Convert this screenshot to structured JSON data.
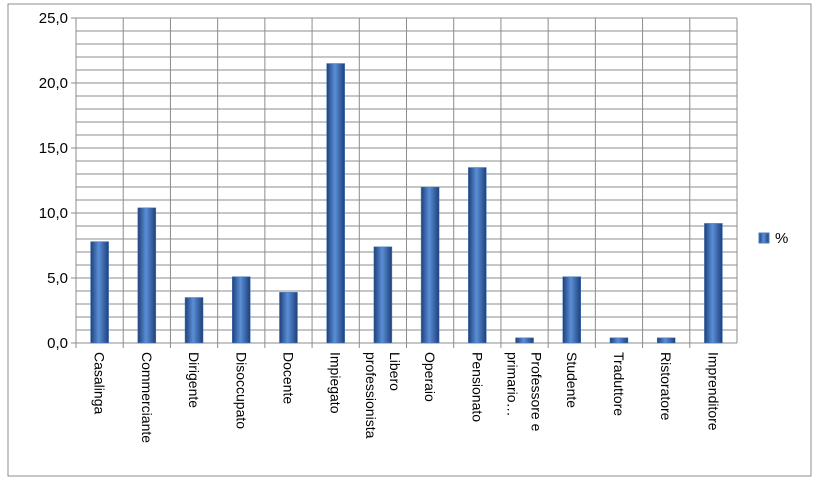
{
  "chart_data": {
    "type": "bar",
    "categories": [
      "Casalinga",
      "Commerciante",
      "Dirigente",
      "Disoccupato",
      "Docente",
      "Impiegato",
      "Libero professionista",
      "Operaio",
      "Pensionato",
      "Professore e primario…",
      "Studente",
      "Traduttore",
      "Ristoratore",
      "Imprenditore"
    ],
    "series": [
      {
        "name": "%",
        "color": "#4a7ebb",
        "values": [
          7.8,
          10.4,
          3.5,
          5.1,
          3.9,
          21.5,
          7.4,
          12.0,
          13.5,
          0.4,
          5.1,
          0.4,
          0.4,
          9.2
        ]
      }
    ],
    "ylim": [
      0,
      25
    ],
    "yticks": [
      {
        "value": 0,
        "label": "0,0"
      },
      {
        "value": 5,
        "label": "5,0"
      },
      {
        "value": 10,
        "label": "10,0"
      },
      {
        "value": 15,
        "label": "15,0"
      },
      {
        "value": 20,
        "label": "20,0"
      },
      {
        "value": 25,
        "label": "25,0"
      }
    ],
    "grid": true,
    "minor_grid": true,
    "legend": "right"
  }
}
